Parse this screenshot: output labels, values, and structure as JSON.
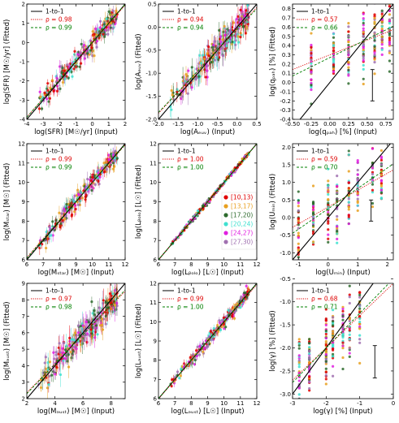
{
  "chart_data": [
    {
      "type": "scatter",
      "xlabel": "log(SFR) [M☉/yr] (Input)",
      "ylabel": "log(SFR) [M☉/yr] (Fitted)",
      "xlim": [
        -4,
        2
      ],
      "ylim": [
        -4,
        2
      ],
      "xticks": [
        "-4",
        "-3",
        "-2",
        "-1",
        "0",
        "1",
        "2"
      ],
      "yticks": [
        "-4",
        "-3",
        "-2",
        "-1",
        "0",
        "1",
        "2"
      ],
      "legend": [
        {
          "label": "1-to-1",
          "color": "#000000",
          "style": "solid"
        },
        {
          "label": "ρ = 0.98",
          "color": "#dd0000",
          "style": "dotted"
        },
        {
          "label": "ρ = 0.99",
          "color": "#008000",
          "style": "dashed"
        }
      ],
      "fits": {
        "red": {
          "slope": 0.97,
          "intercept": 0.0
        },
        "green": {
          "slope": 0.98,
          "intercept": 0.03
        }
      },
      "spread": 0.25,
      "error": 0.3
    },
    {
      "type": "scatter",
      "xlabel": "log(Aₑᵤᵥ) (Input)",
      "ylabel": "log(Aₑᵤᵥ) (Fitted)",
      "xlim": [
        -2.0,
        0.5
      ],
      "ylim": [
        -2.0,
        0.5
      ],
      "xticks": [
        "-2.0",
        "-1.5",
        "-1.0",
        "-0.5",
        "0.0",
        "0.5"
      ],
      "yticks": [
        "-2.0",
        "-1.5",
        "-1.0",
        "-0.5",
        "0.0",
        "0.5"
      ],
      "legend": [
        {
          "label": "1-to-1",
          "color": "#000000",
          "style": "solid"
        },
        {
          "label": "ρ = 0.94",
          "color": "#dd0000",
          "style": "dotted"
        },
        {
          "label": "ρ = 0.94",
          "color": "#008000",
          "style": "dashed"
        }
      ],
      "fits": {
        "red": {
          "slope": 0.92,
          "intercept": -0.03
        },
        "green": {
          "slope": 0.9,
          "intercept": -0.05
        }
      },
      "spread": 0.14,
      "error": 0.2
    },
    {
      "type": "scatter",
      "xlabel": "log(qₚₐₕ) [%] (Input)",
      "ylabel": "log(qₚₐₕ) [%] (Fitted)",
      "xlim": [
        -0.5,
        0.85
      ],
      "ylim": [
        -0.4,
        0.85
      ],
      "xticks": [
        "-0.50",
        "-0.25",
        "0.00",
        "0.25",
        "0.50",
        "0.75"
      ],
      "yticks": [
        "-0.4",
        "-0.3",
        "-0.2",
        "-0.1",
        "0.0",
        "0.1",
        "0.2",
        "0.3",
        "0.4",
        "0.5",
        "0.6",
        "0.7",
        "0.8"
      ],
      "legend": [
        {
          "label": "1-to-1",
          "color": "#000000",
          "style": "solid"
        },
        {
          "label": "ρ = 0.57",
          "color": "#dd0000",
          "style": "dotted"
        },
        {
          "label": "ρ = 0.66",
          "color": "#008000",
          "style": "dashed"
        }
      ],
      "fits": {
        "red": {
          "slope": 0.32,
          "intercept": 0.3
        },
        "green": {
          "slope": 0.4,
          "intercept": 0.27
        }
      },
      "spread": 0.17,
      "error": 0.0,
      "discrete_x": [
        -0.25,
        0.05,
        0.25,
        0.45,
        0.6,
        0.7,
        0.8
      ],
      "errbar": {
        "x": 0.57,
        "y": -0.03,
        "err": 0.17
      }
    },
    {
      "type": "scatter",
      "xlabel": "log(Mₛₜₐᵣ) [M☉] (Input)",
      "ylabel": "log(Mₛₜₐᵣ) [M☉] (Fitted)",
      "xlim": [
        6,
        12
      ],
      "ylim": [
        6,
        12
      ],
      "xticks": [
        "6",
        "7",
        "8",
        "9",
        "10",
        "11",
        "12"
      ],
      "yticks": [
        "6",
        "7",
        "8",
        "9",
        "10",
        "11",
        "12"
      ],
      "legend": [
        {
          "label": "1-to-1",
          "color": "#000000",
          "style": "solid"
        },
        {
          "label": "ρ = 0.99",
          "color": "#dd0000",
          "style": "dotted"
        },
        {
          "label": "ρ = 0.99",
          "color": "#008000",
          "style": "dashed"
        }
      ],
      "fits": {
        "red": {
          "slope": 0.97,
          "intercept": 0.3
        },
        "green": {
          "slope": 0.98,
          "intercept": 0.2
        }
      },
      "spread": 0.22,
      "error": 0.3
    },
    {
      "type": "scatter",
      "xlabel": "log(Lᵦₒₗₒ) [L☉] (Input)",
      "ylabel": "log(Lᵦₒₗₒ) [L☉] (Fitted)",
      "xlim": [
        6,
        12
      ],
      "ylim": [
        6,
        12
      ],
      "xticks": [
        "6",
        "7",
        "8",
        "9",
        "10",
        "11",
        "12"
      ],
      "yticks": [
        "6",
        "7",
        "8",
        "9",
        "10",
        "11",
        "12"
      ],
      "legend": [
        {
          "label": "1-to-1",
          "color": "#000000",
          "style": "solid"
        },
        {
          "label": "ρ = 1.00",
          "color": "#dd0000",
          "style": "dotted"
        },
        {
          "label": "ρ = 1.00",
          "color": "#008000",
          "style": "dashed"
        }
      ],
      "fits": {
        "red": {
          "slope": 1.0,
          "intercept": 0.0
        },
        "green": {
          "slope": 1.0,
          "intercept": 0.0
        }
      },
      "spread": 0.05,
      "error": 0.05,
      "color_legend": [
        "[10,13)",
        "[13,17)",
        "[17,20)",
        "[20,24)",
        "[24,27)",
        "[27,30)"
      ]
    },
    {
      "type": "scatter",
      "xlabel": "log(Uₘᵢₙ) (Input)",
      "ylabel": "log(Uₘᵢₙ) (Fitted)",
      "xlim": [
        -1.2,
        2.2
      ],
      "ylim": [
        -1.2,
        2.1
      ],
      "xticks": [
        "-1",
        "0",
        "1",
        "2"
      ],
      "yticks": [
        "-1.0",
        "-0.5",
        "0.0",
        "0.5",
        "1.0",
        "1.5",
        "2.0"
      ],
      "legend": [
        {
          "label": "1-to-1",
          "color": "#000000",
          "style": "solid"
        },
        {
          "label": "ρ = 0.59",
          "color": "#dd0000",
          "style": "dotted"
        },
        {
          "label": "ρ = 0.70",
          "color": "#008000",
          "style": "dashed"
        }
      ],
      "fits": {
        "red": {
          "slope": 0.48,
          "intercept": 0.3
        },
        "green": {
          "slope": 0.58,
          "intercept": 0.25
        }
      },
      "spread": 0.45,
      "error": 0.0,
      "discrete_x": [
        -1.0,
        -0.5,
        0.0,
        0.3,
        0.7,
        1.0,
        1.5,
        1.8
      ],
      "errbar": {
        "x": 1.45,
        "y": 0.2,
        "err": 0.3
      }
    },
    {
      "type": "scatter",
      "xlabel": "log(Mₔᵤₛₜ) [M☉] (Input)",
      "ylabel": "log(Mₔᵤₛₜ) [M☉] (Fitted)",
      "xlim": [
        2,
        9
      ],
      "ylim": [
        2,
        9
      ],
      "xticks": [
        "2",
        "4",
        "6",
        "8"
      ],
      "yticks": [
        "2",
        "3",
        "4",
        "5",
        "6",
        "7",
        "8",
        "9"
      ],
      "legend": [
        {
          "label": "1-to-1",
          "color": "#000000",
          "style": "solid"
        },
        {
          "label": "ρ = 0.97",
          "color": "#dd0000",
          "style": "dotted"
        },
        {
          "label": "ρ = 0.98",
          "color": "#008000",
          "style": "dashed"
        }
      ],
      "fits": {
        "red": {
          "slope": 0.88,
          "intercept": 0.6
        },
        "green": {
          "slope": 0.9,
          "intercept": 0.5
        }
      },
      "spread": 0.4,
      "error": 0.6
    },
    {
      "type": "scatter",
      "xlabel": "log(Lₔᵤₛₜ) [L☉] (Input)",
      "ylabel": "log(Lₔᵤₛₜ) [L☉] (Fitted)",
      "xlim": [
        6,
        12
      ],
      "ylim": [
        6,
        12
      ],
      "xticks": [
        "6",
        "7",
        "8",
        "9",
        "10",
        "11",
        "12"
      ],
      "yticks": [
        "6",
        "7",
        "8",
        "9",
        "10",
        "11",
        "12"
      ],
      "legend": [
        {
          "label": "1-to-1",
          "color": "#000000",
          "style": "solid"
        },
        {
          "label": "ρ = 0.99",
          "color": "#dd0000",
          "style": "dotted"
        },
        {
          "label": "ρ = 1.00",
          "color": "#008000",
          "style": "dashed"
        }
      ],
      "fits": {
        "red": {
          "slope": 0.99,
          "intercept": 0.05
        },
        "green": {
          "slope": 1.0,
          "intercept": 0.0
        }
      },
      "spread": 0.15,
      "error": 0.2
    },
    {
      "type": "scatter",
      "xlabel": "log(γ) [%] (Input)",
      "ylabel": "log(γ) [%] (Fitted)",
      "xlim": [
        -3.0,
        0.0
      ],
      "ylim": [
        -3.1,
        -0.6
      ],
      "xticks": [
        "-3",
        "-2",
        "-1",
        "0"
      ],
      "yticks": [
        "-3.0",
        "-2.5",
        "-2.0",
        "-1.5",
        "-1.0",
        "-0.5"
      ],
      "legend": [
        {
          "label": "1-to-1",
          "color": "#000000",
          "style": "solid"
        },
        {
          "label": "ρ = 0.68",
          "color": "#dd0000",
          "style": "dotted"
        },
        {
          "label": "ρ = 0.71",
          "color": "#008000",
          "style": "dashed"
        }
      ],
      "fits": {
        "red": {
          "slope": 0.7,
          "intercept": -0.6
        },
        "green": {
          "slope": 0.75,
          "intercept": -0.5
        }
      },
      "spread": 0.35,
      "error": 0.0,
      "discrete_x": [
        -2.8,
        -2.5,
        -2.0,
        -1.8,
        -1.5,
        -1.3,
        -1.0
      ],
      "errbar": {
        "x": -0.55,
        "y": -2.3,
        "err": 0.35
      }
    }
  ],
  "colors": {
    "bins": [
      "#e00000",
      "#e8a020",
      "#2e6b2e",
      "#40e0d0",
      "#e020e0",
      "#a070b0"
    ],
    "one_to_one": "#000000",
    "fit_red": "#dd0000",
    "fit_green": "#008000"
  }
}
